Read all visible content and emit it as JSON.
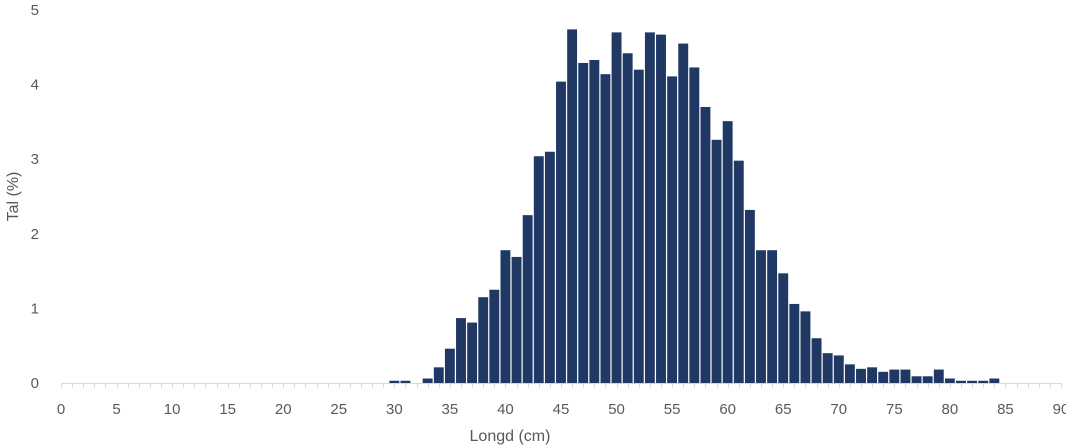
{
  "chart_data": {
    "type": "bar",
    "title": "",
    "xlabel": "Longd (cm)",
    "ylabel": "Tal (%)",
    "xlim": [
      0,
      90
    ],
    "ylim": [
      0,
      5
    ],
    "xticks": [
      0,
      5,
      10,
      15,
      20,
      25,
      30,
      35,
      40,
      45,
      50,
      55,
      60,
      65,
      70,
      75,
      80,
      85,
      90
    ],
    "yticks": [
      0,
      1,
      2,
      3,
      4,
      5
    ],
    "grid": false,
    "legend": "none",
    "bar_color": "#203864",
    "axis_color": "#d9d9d9",
    "text_color": "#595959",
    "x": [
      30,
      31,
      33,
      34,
      35,
      36,
      37,
      38,
      39,
      40,
      41,
      42,
      43,
      44,
      45,
      46,
      47,
      48,
      49,
      50,
      51,
      52,
      53,
      54,
      55,
      56,
      57,
      58,
      59,
      60,
      61,
      62,
      63,
      64,
      65,
      66,
      67,
      68,
      69,
      70,
      71,
      72,
      73,
      74,
      75,
      76,
      77,
      78,
      79,
      80,
      81,
      82,
      83,
      84
    ],
    "values": [
      0.03,
      0.03,
      0.06,
      0.21,
      0.46,
      0.87,
      0.81,
      1.15,
      1.25,
      1.78,
      1.69,
      2.25,
      3.04,
      3.1,
      4.04,
      4.74,
      4.29,
      4.33,
      4.14,
      4.7,
      4.42,
      4.2,
      4.7,
      4.67,
      4.11,
      4.55,
      4.23,
      3.7,
      3.26,
      3.51,
      2.98,
      2.32,
      1.78,
      1.78,
      1.47,
      1.06,
      0.96,
      0.6,
      0.4,
      0.37,
      0.25,
      0.19,
      0.21,
      0.15,
      0.18,
      0.18,
      0.09,
      0.09,
      0.18,
      0.06,
      0.03,
      0.03,
      0.03,
      0.06
    ]
  }
}
